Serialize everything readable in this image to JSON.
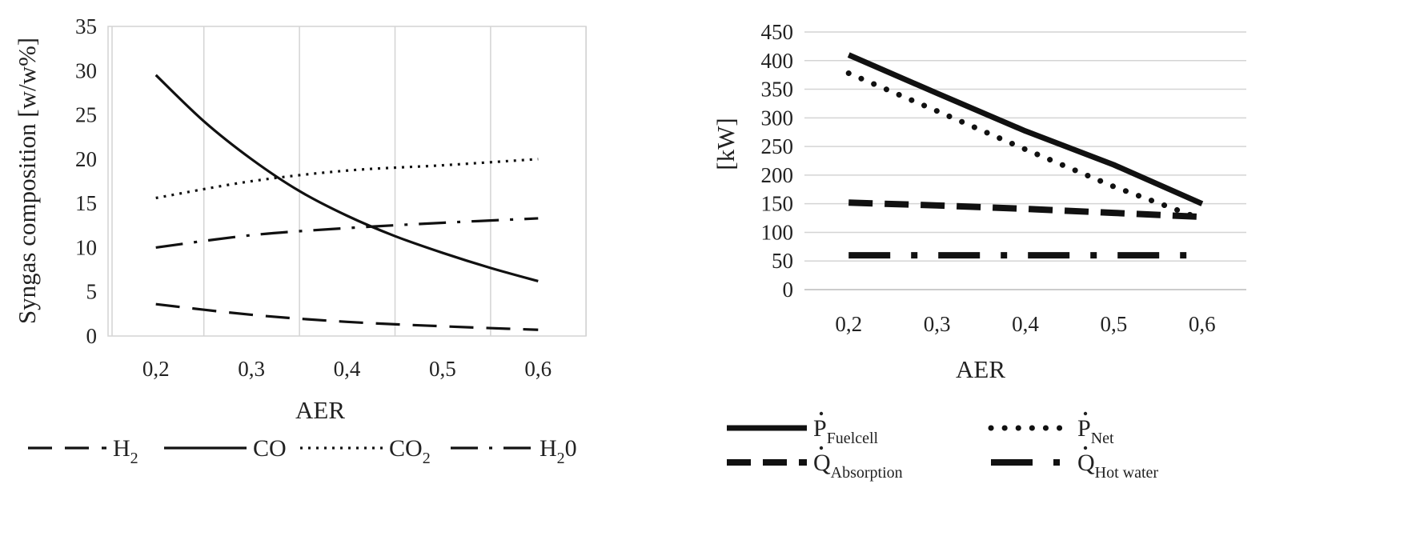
{
  "chart_data": [
    {
      "type": "line",
      "title": "",
      "xlabel": "AER",
      "ylabel": "Syngas composition [w/w%]",
      "x": [
        "0,2",
        "0,3",
        "0,4",
        "0,5",
        "0,6"
      ],
      "x_values": [
        0.2,
        0.3,
        0.4,
        0.5,
        0.6
      ],
      "xlim": [
        0.15,
        0.65
      ],
      "ylim": [
        0,
        35
      ],
      "yticks": [
        "0",
        "5",
        "10",
        "15",
        "20",
        "25",
        "30",
        "35"
      ],
      "grid": "vertical",
      "legend_position": "bottom",
      "series": [
        {
          "name": "H",
          "subscript": "2",
          "style": "dashed",
          "color": "#111111",
          "points": [
            [
              0.2,
              3.6
            ],
            [
              0.3,
              2.4
            ],
            [
              0.4,
              1.6
            ],
            [
              0.5,
              1.1
            ],
            [
              0.6,
              0.7
            ]
          ]
        },
        {
          "name": "CO",
          "subscript": "",
          "style": "solid",
          "color": "#111111",
          "points": [
            [
              0.2,
              29.5
            ],
            [
              0.25,
              24.3
            ],
            [
              0.3,
              20.0
            ],
            [
              0.35,
              16.4
            ],
            [
              0.4,
              13.6
            ],
            [
              0.45,
              11.3
            ],
            [
              0.5,
              9.4
            ],
            [
              0.55,
              7.7
            ],
            [
              0.6,
              6.2
            ]
          ]
        },
        {
          "name": "CO",
          "subscript": "2",
          "style": "dotted",
          "color": "#111111",
          "points": [
            [
              0.2,
              15.6
            ],
            [
              0.3,
              17.5
            ],
            [
              0.4,
              18.7
            ],
            [
              0.5,
              19.3
            ],
            [
              0.6,
              20.0
            ]
          ]
        },
        {
          "name": "H",
          "subscript": "2",
          "suffix": "0",
          "style": "dash-dot",
          "color": "#111111",
          "points": [
            [
              0.2,
              10.0
            ],
            [
              0.3,
              11.4
            ],
            [
              0.4,
              12.2
            ],
            [
              0.5,
              12.8
            ],
            [
              0.6,
              13.3
            ]
          ]
        }
      ]
    },
    {
      "type": "line",
      "title": "",
      "xlabel": "AER",
      "ylabel": "[kW]",
      "x": [
        "0,2",
        "0,3",
        "0,4",
        "0,5",
        "0,6"
      ],
      "x_values": [
        0.2,
        0.3,
        0.4,
        0.5,
        0.6
      ],
      "xlim": [
        0.15,
        0.65
      ],
      "ylim": [
        0,
        450
      ],
      "yticks": [
        "0",
        "50",
        "100",
        "150",
        "200",
        "250",
        "300",
        "350",
        "400",
        "450"
      ],
      "grid": "horizontal",
      "legend_position": "bottom",
      "series": [
        {
          "name": "P",
          "dot": true,
          "subscript": "Fuelcell",
          "style": "solid-thick",
          "color": "#111111",
          "points": [
            [
              0.2,
              410
            ],
            [
              0.3,
              343
            ],
            [
              0.4,
              277
            ],
            [
              0.5,
              218
            ],
            [
              0.6,
              150
            ]
          ]
        },
        {
          "name": "P",
          "dot": true,
          "subscript": "Net",
          "style": "dotted-thick",
          "color": "#111111",
          "points": [
            [
              0.2,
              378
            ],
            [
              0.3,
              312
            ],
            [
              0.4,
              245
            ],
            [
              0.5,
              180
            ],
            [
              0.6,
              123
            ]
          ]
        },
        {
          "name": "Q",
          "dot": true,
          "subscript": "Absorption",
          "style": "dashed-thick",
          "color": "#111111",
          "points": [
            [
              0.2,
              152
            ],
            [
              0.3,
              147
            ],
            [
              0.4,
              141
            ],
            [
              0.5,
              134
            ],
            [
              0.6,
              127
            ]
          ]
        },
        {
          "name": "Q",
          "dot": true,
          "subscript": "Hot water",
          "style": "dash-dot-thick",
          "color": "#111111",
          "points": [
            [
              0.2,
              60
            ],
            [
              0.3,
              60
            ],
            [
              0.4,
              60
            ],
            [
              0.5,
              60
            ],
            [
              0.6,
              60
            ]
          ]
        }
      ]
    }
  ]
}
